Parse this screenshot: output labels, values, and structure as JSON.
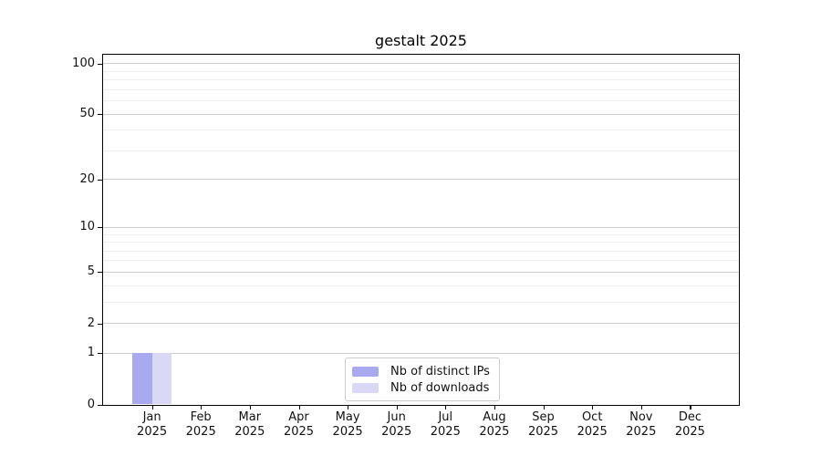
{
  "colors": {
    "distinct_ips": "#a9a9f0",
    "downloads": "#d9d9f7",
    "grid_major": "#cdcdcd",
    "grid_minor": "#eeeeee",
    "axis_frame": "#000000",
    "text": "#111111",
    "legend_border": "#cccccc"
  },
  "chart_data": {
    "type": "bar",
    "title": "gestalt 2025",
    "categories": [
      "Jan",
      "Feb",
      "Mar",
      "Apr",
      "May",
      "Jun",
      "Jul",
      "Aug",
      "Sep",
      "Oct",
      "Nov",
      "Dec"
    ],
    "year": "2025",
    "series": [
      {
        "name": "Nb of distinct IPs",
        "key": "distinct-ips",
        "color_key": "distinct_ips",
        "values": [
          1,
          0,
          0,
          0,
          0,
          0,
          0,
          0,
          0,
          0,
          0,
          0
        ]
      },
      {
        "name": "Nb of downloads",
        "key": "downloads",
        "color_key": "downloads",
        "values": [
          1,
          0,
          0,
          0,
          0,
          0,
          0,
          0,
          0,
          0,
          0,
          0
        ]
      }
    ],
    "y_axis": {
      "scale": "log1p",
      "ticks": [
        100,
        50,
        20,
        10,
        5,
        2,
        1,
        0
      ],
      "minor_ticks": [
        90,
        80,
        70,
        60,
        40,
        30,
        9,
        8,
        7,
        6,
        4,
        3
      ],
      "ylim": [
        0,
        112
      ]
    },
    "x_axis": {
      "label_lines": 2
    },
    "legend": {
      "position": "lower center"
    },
    "grid": true
  }
}
